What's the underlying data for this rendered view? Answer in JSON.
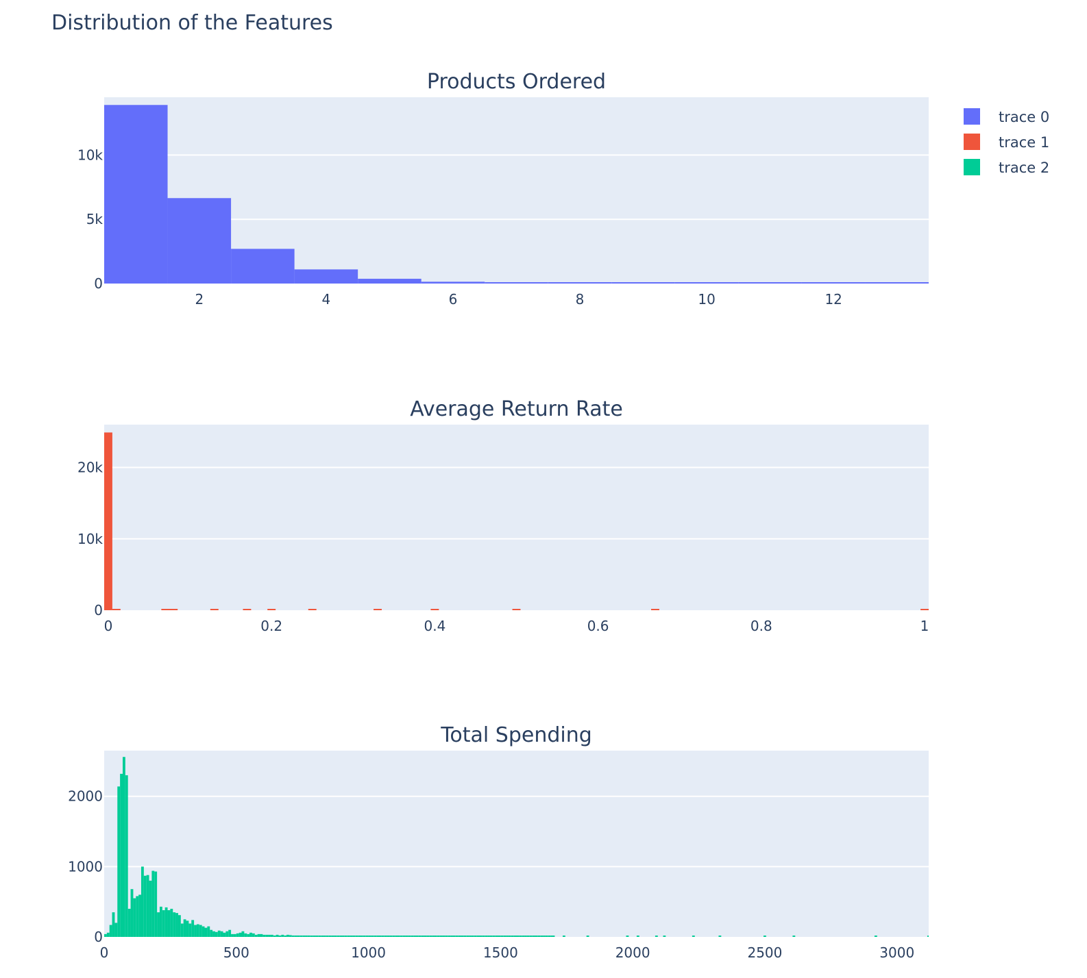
{
  "title": "Distribution of the Features",
  "legend": {
    "position": "top-right",
    "items": [
      {
        "label": "trace 0",
        "color": "#636efa"
      },
      {
        "label": "trace 1",
        "color": "#ef553b"
      },
      {
        "label": "trace 2",
        "color": "#00cc96"
      }
    ]
  },
  "chart_data": [
    {
      "type": "bar",
      "title": "Products Ordered",
      "series_name": "trace 0",
      "color": "#636efa",
      "grid": true,
      "xlim": [
        0.5,
        13.5
      ],
      "ylim": [
        0,
        14500
      ],
      "xticks": [
        {
          "v": 2,
          "label": "2"
        },
        {
          "v": 4,
          "label": "4"
        },
        {
          "v": 6,
          "label": "6"
        },
        {
          "v": 8,
          "label": "8"
        },
        {
          "v": 10,
          "label": "10"
        },
        {
          "v": 12,
          "label": "12"
        }
      ],
      "yticks": [
        {
          "v": 0,
          "label": "0"
        },
        {
          "v": 5000,
          "label": "5k"
        },
        {
          "v": 10000,
          "label": "10k"
        }
      ],
      "bins": [
        {
          "x0": 0.5,
          "x1": 1.5,
          "y": 13900
        },
        {
          "x0": 1.5,
          "x1": 2.5,
          "y": 6650
        },
        {
          "x0": 2.5,
          "x1": 3.5,
          "y": 2700
        },
        {
          "x0": 3.5,
          "x1": 4.5,
          "y": 1100
        },
        {
          "x0": 4.5,
          "x1": 5.5,
          "y": 370
        },
        {
          "x0": 5.5,
          "x1": 6.5,
          "y": 140
        },
        {
          "x0": 6.5,
          "x1": 7.5,
          "y": 55
        },
        {
          "x0": 7.5,
          "x1": 8.5,
          "y": 30
        },
        {
          "x0": 8.5,
          "x1": 9.5,
          "y": 20
        },
        {
          "x0": 9.5,
          "x1": 10.5,
          "y": 15
        },
        {
          "x0": 10.5,
          "x1": 11.5,
          "y": 12
        },
        {
          "x0": 11.5,
          "x1": 12.5,
          "y": 10
        },
        {
          "x0": 12.5,
          "x1": 13.5,
          "y": 8
        }
      ]
    },
    {
      "type": "bar",
      "title": "Average Return Rate",
      "series_name": "trace 1",
      "color": "#ef553b",
      "grid": true,
      "xlim": [
        -0.005,
        1.005
      ],
      "ylim": [
        0,
        26000
      ],
      "xticks": [
        {
          "v": 0,
          "label": "0"
        },
        {
          "v": 0.2,
          "label": "0.2"
        },
        {
          "v": 0.4,
          "label": "0.4"
        },
        {
          "v": 0.6,
          "label": "0.6"
        },
        {
          "v": 0.8,
          "label": "0.8"
        },
        {
          "v": 1,
          "label": "1"
        }
      ],
      "yticks": [
        {
          "v": 0,
          "label": "0"
        },
        {
          "v": 10000,
          "label": "10k"
        },
        {
          "v": 20000,
          "label": "20k"
        }
      ],
      "bins": [
        {
          "x0": -0.005,
          "x1": 0.005,
          "y": 24900
        },
        {
          "x0": 0.005,
          "x1": 0.015,
          "y": 80
        },
        {
          "x0": 0.065,
          "x1": 0.085,
          "y": 60
        },
        {
          "x0": 0.125,
          "x1": 0.135,
          "y": 50
        },
        {
          "x0": 0.165,
          "x1": 0.175,
          "y": 70
        },
        {
          "x0": 0.195,
          "x1": 0.205,
          "y": 90
        },
        {
          "x0": 0.245,
          "x1": 0.255,
          "y": 110
        },
        {
          "x0": 0.325,
          "x1": 0.335,
          "y": 100
        },
        {
          "x0": 0.395,
          "x1": 0.405,
          "y": 60
        },
        {
          "x0": 0.495,
          "x1": 0.505,
          "y": 150
        },
        {
          "x0": 0.665,
          "x1": 0.675,
          "y": 60
        },
        {
          "x0": 0.995,
          "x1": 1.005,
          "y": 70
        }
      ]
    },
    {
      "type": "bar",
      "title": "Total Spending",
      "series_name": "trace 2",
      "color": "#00cc96",
      "grid": true,
      "xlim": [
        0,
        3120
      ],
      "ylim": [
        0,
        2650
      ],
      "xticks": [
        {
          "v": 0,
          "label": "0"
        },
        {
          "v": 500,
          "label": "500"
        },
        {
          "v": 1000,
          "label": "1000"
        },
        {
          "v": 1500,
          "label": "1500"
        },
        {
          "v": 2000,
          "label": "2000"
        },
        {
          "v": 2500,
          "label": "2500"
        },
        {
          "v": 3000,
          "label": "3000"
        }
      ],
      "yticks": [
        {
          "v": 0,
          "label": "0"
        },
        {
          "v": 1000,
          "label": "1000"
        },
        {
          "v": 2000,
          "label": "2000"
        }
      ],
      "bin_width": 10,
      "bin_start": 0,
      "values": [
        40,
        60,
        170,
        350,
        200,
        2140,
        2320,
        2560,
        2300,
        400,
        680,
        550,
        580,
        600,
        1000,
        870,
        880,
        800,
        940,
        930,
        350,
        430,
        380,
        420,
        380,
        400,
        350,
        340,
        310,
        190,
        250,
        230,
        190,
        240,
        170,
        180,
        170,
        150,
        130,
        150,
        100,
        80,
        70,
        90,
        80,
        60,
        80,
        100,
        40,
        40,
        50,
        60,
        80,
        50,
        40,
        60,
        50,
        30,
        40,
        40,
        30,
        30,
        30,
        30,
        20,
        30,
        20,
        30,
        20,
        30,
        25,
        20,
        20,
        20,
        20,
        20,
        20,
        20,
        15,
        15,
        15,
        15,
        12,
        12,
        10,
        10,
        10,
        10,
        10,
        10,
        10,
        10,
        10,
        10,
        10,
        10,
        10,
        10,
        10,
        10,
        10,
        10,
        10,
        10,
        10,
        10,
        10,
        10,
        10,
        10,
        8,
        8,
        8,
        8,
        8,
        8,
        8,
        8,
        8,
        8,
        8,
        8,
        8,
        8,
        8,
        8,
        8,
        8,
        8,
        8,
        6,
        6,
        6,
        6,
        6,
        6,
        6,
        6,
        6,
        6,
        6,
        6,
        6,
        6,
        6,
        6,
        6,
        6,
        6,
        6,
        5,
        5,
        5,
        5,
        5,
        5,
        5,
        5,
        5,
        5,
        5,
        5,
        5,
        5,
        5,
        5,
        5,
        5,
        5,
        5
      ],
      "sparse": [
        {
          "x": 1700,
          "y": 5
        },
        {
          "x": 1740,
          "y": 5
        },
        {
          "x": 1830,
          "y": 5
        },
        {
          "x": 1980,
          "y": 4
        },
        {
          "x": 2020,
          "y": 4
        },
        {
          "x": 2090,
          "y": 4
        },
        {
          "x": 2120,
          "y": 5
        },
        {
          "x": 2230,
          "y": 4
        },
        {
          "x": 2330,
          "y": 4
        },
        {
          "x": 2500,
          "y": 4
        },
        {
          "x": 2610,
          "y": 4
        },
        {
          "x": 2920,
          "y": 4
        },
        {
          "x": 3120,
          "y": 4
        }
      ]
    }
  ]
}
